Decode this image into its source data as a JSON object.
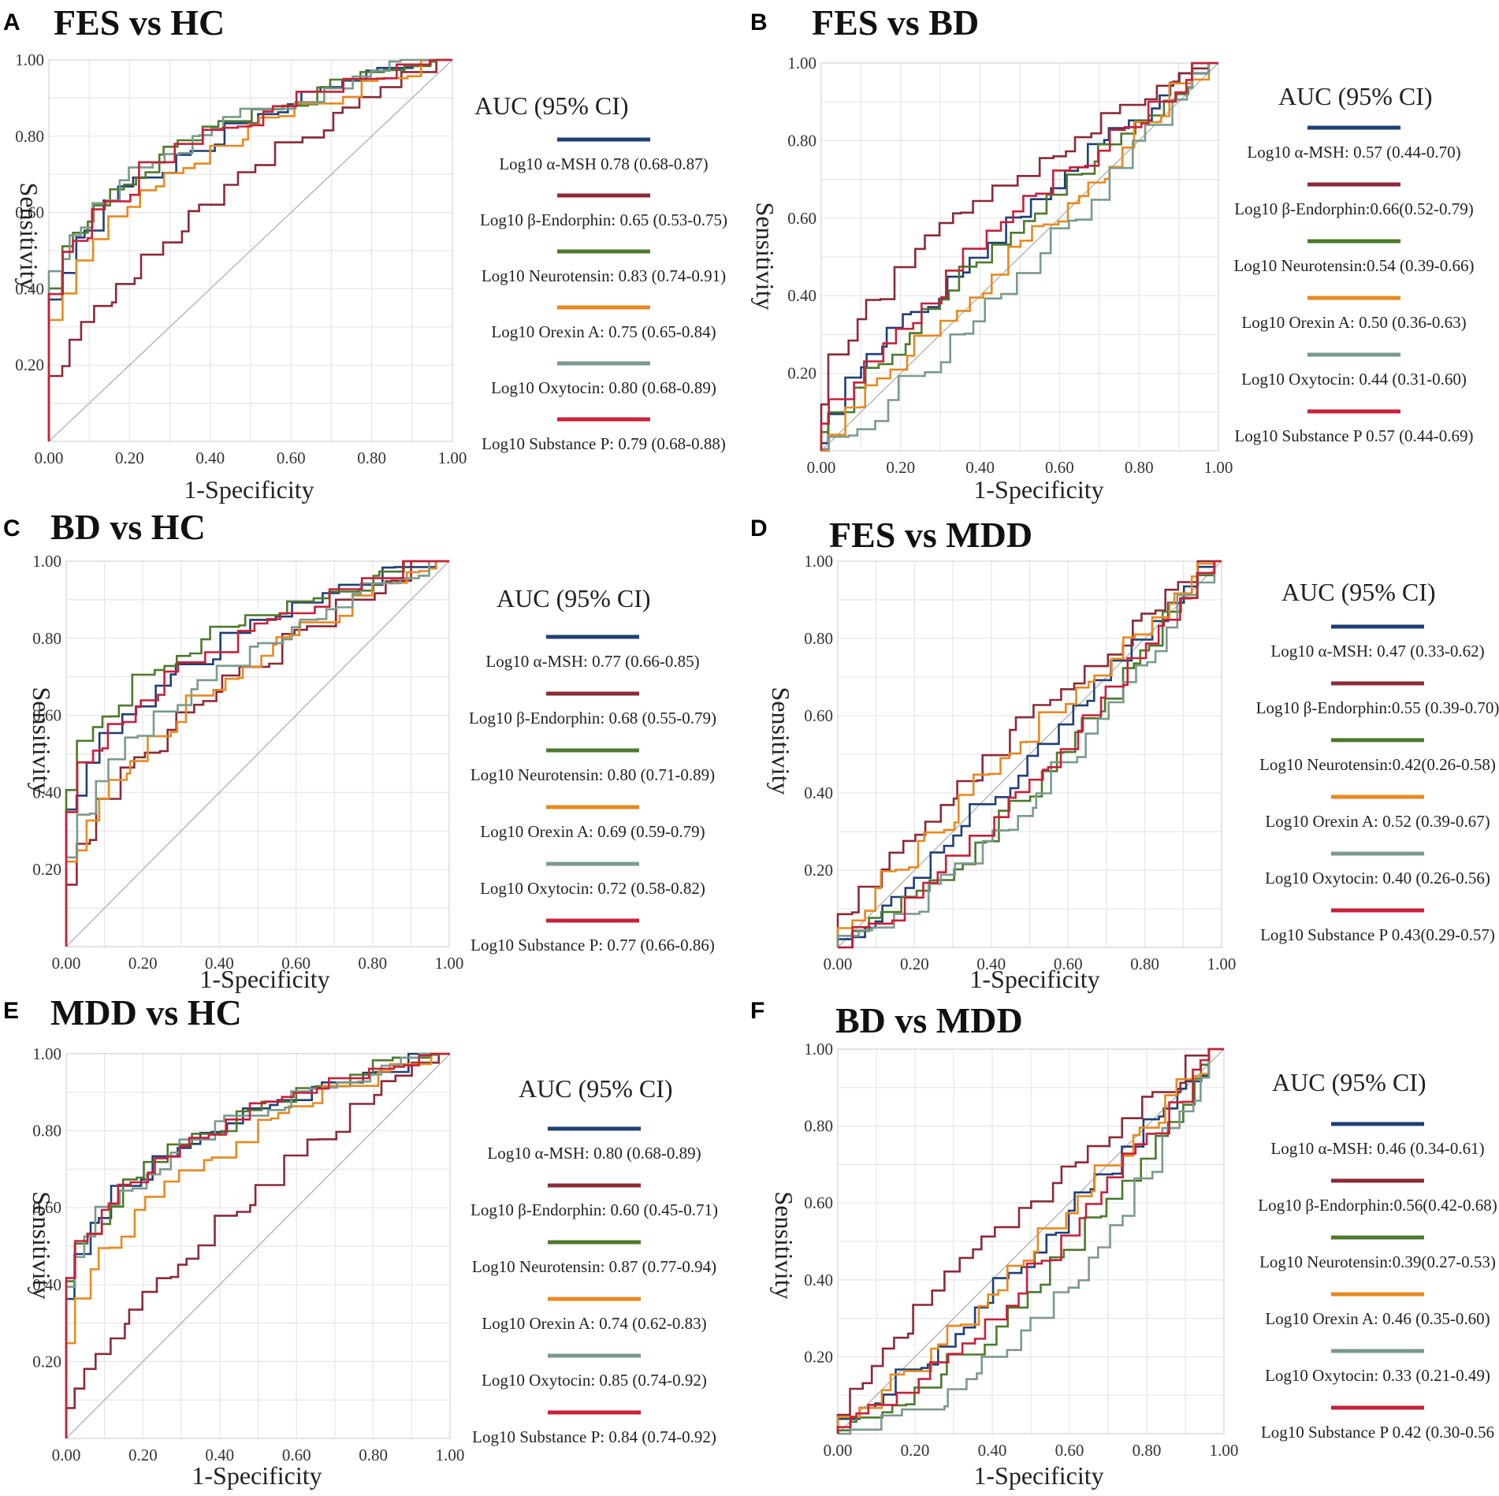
{
  "figure": {
    "colors": {
      "alpha_msh": "#1f3f74",
      "beta_endorphin": "#8b2a36",
      "neurotensin": "#4c7a2c",
      "orexin_a": "#e8891f",
      "oxytocin": "#7a9a8c",
      "substance_p": "#c8203a",
      "reference": "#b8b8b8"
    }
  },
  "chart_data": [
    {
      "panel": "A",
      "title": "FES vs HC",
      "type": "line",
      "xlabel": "1-Specificity",
      "ylabel": "Sensitivity",
      "xlim": [
        0,
        1
      ],
      "ylim": [
        0,
        1
      ],
      "xticks": [
        "0.00",
        "0.20",
        "0.40",
        "0.60",
        "0.80",
        "1.00"
      ],
      "yticks": [
        "0.20",
        "0.40",
        "0.60",
        "0.80",
        "1.00"
      ],
      "legend_title": "AUC (95% CI)",
      "series": [
        {
          "key": "alpha_msh",
          "label": "Log10 α-MSH 0.78 (0.68-0.87)",
          "auc": 0.78
        },
        {
          "key": "beta_endorphin",
          "label": "Log10 β-Endorphin: 0.65 (0.53-0.75)",
          "auc": 0.65
        },
        {
          "key": "neurotensin",
          "label": "Log10 Neurotensin: 0.83 (0.74-0.91)",
          "auc": 0.83
        },
        {
          "key": "orexin_a",
          "label": "Log10 Orexin A: 0.75 (0.65-0.84)",
          "auc": 0.75
        },
        {
          "key": "oxytocin",
          "label": "Log10 Oxytocin: 0.80 (0.68-0.89)",
          "auc": 0.8
        },
        {
          "key": "substance_p",
          "label": "Log10 Substance P: 0.79 (0.68-0.88)",
          "auc": 0.79
        }
      ]
    },
    {
      "panel": "B",
      "title": "FES vs BD",
      "type": "line",
      "xlabel": "1-Specificity",
      "ylabel": "Sensitivity",
      "xlim": [
        0,
        1
      ],
      "ylim": [
        0,
        1
      ],
      "xticks": [
        "0.00",
        "0.20",
        "0.40",
        "0.60",
        "0.80",
        "1.00"
      ],
      "yticks": [
        "0.20",
        "0.40",
        "0.60",
        "0.80",
        "1.00"
      ],
      "legend_title": "AUC (95% CI)",
      "series": [
        {
          "key": "alpha_msh",
          "label": "Log10 α-MSH: 0.57 (0.44-0.70)",
          "auc": 0.57
        },
        {
          "key": "beta_endorphin",
          "label": "Log10 β-Endorphin:0.66(0.52-0.79)",
          "auc": 0.66
        },
        {
          "key": "neurotensin",
          "label": "Log10 Neurotensin:0.54 (0.39-0.66)",
          "auc": 0.54
        },
        {
          "key": "orexin_a",
          "label": "Log10 Orexin A: 0.50 (0.36-0.63)",
          "auc": 0.5
        },
        {
          "key": "oxytocin",
          "label": "Log10 Oxytocin: 0.44 (0.31-0.60)",
          "auc": 0.44
        },
        {
          "key": "substance_p",
          "label": "Log10 Substance P 0.57 (0.44-0.69)",
          "auc": 0.57
        }
      ]
    },
    {
      "panel": "C",
      "title": "BD vs HC",
      "type": "line",
      "xlabel": "1-Specificity",
      "ylabel": "Sensitivity",
      "xlim": [
        0,
        1
      ],
      "ylim": [
        0,
        1
      ],
      "xticks": [
        "0.00",
        "0.20",
        "0.40",
        "0.60",
        "0.80",
        "1.00"
      ],
      "yticks": [
        "0.20",
        "0.40",
        "0.60",
        "0.80",
        "1.00"
      ],
      "legend_title": "AUC (95% CI)",
      "series": [
        {
          "key": "alpha_msh",
          "label": "Log10 α-MSH: 0.77 (0.66-0.85)",
          "auc": 0.77
        },
        {
          "key": "beta_endorphin",
          "label": "Log10 β-Endorphin: 0.68 (0.55-0.79)",
          "auc": 0.68
        },
        {
          "key": "neurotensin",
          "label": "Log10 Neurotensin: 0.80 (0.71-0.89)",
          "auc": 0.8
        },
        {
          "key": "orexin_a",
          "label": "Log10 Orexin A: 0.69 (0.59-0.79)",
          "auc": 0.69
        },
        {
          "key": "oxytocin",
          "label": "Log10 Oxytocin: 0.72 (0.58-0.82)",
          "auc": 0.72
        },
        {
          "key": "substance_p",
          "label": "Log10 Substance P: 0.77 (0.66-0.86)",
          "auc": 0.77
        }
      ]
    },
    {
      "panel": "D",
      "title": "FES vs MDD",
      "type": "line",
      "xlabel": "1-Specificity",
      "ylabel": "Sensitivity",
      "xlim": [
        0,
        1
      ],
      "ylim": [
        0,
        1
      ],
      "xticks": [
        "0.00",
        "0.20",
        "0.40",
        "0.60",
        "0.80",
        "1.00"
      ],
      "yticks": [
        "0.20",
        "0.40",
        "0.60",
        "0.80",
        "1.00"
      ],
      "legend_title": "AUC (95% CI)",
      "series": [
        {
          "key": "alpha_msh",
          "label": "Log10 α-MSH: 0.47 (0.33-0.62)",
          "auc": 0.47
        },
        {
          "key": "beta_endorphin",
          "label": "Log10 β-Endorphin:0.55 (0.39-0.70)",
          "auc": 0.55
        },
        {
          "key": "neurotensin",
          "label": "Log10 Neurotensin:0.42(0.26-0.58)",
          "auc": 0.42
        },
        {
          "key": "orexin_a",
          "label": "Log10 Orexin A: 0.52 (0.39-0.67)",
          "auc": 0.52
        },
        {
          "key": "oxytocin",
          "label": "Log10 Oxytocin: 0.40 (0.26-0.56)",
          "auc": 0.4
        },
        {
          "key": "substance_p",
          "label": "Log10 Substance P 0.43(0.29-0.57)",
          "auc": 0.43
        }
      ]
    },
    {
      "panel": "E",
      "title": "MDD vs HC",
      "type": "line",
      "xlabel": "1-Specificity",
      "ylabel": "Sensitivity",
      "xlim": [
        0,
        1
      ],
      "ylim": [
        0,
        1
      ],
      "xticks": [
        "0.00",
        "0.20",
        "0.40",
        "0.60",
        "0.80",
        "1.00"
      ],
      "yticks": [
        "0.20",
        "0.40",
        "0.60",
        "0.80",
        "1.00"
      ],
      "legend_title": "AUC (95% CI)",
      "series": [
        {
          "key": "alpha_msh",
          "label": "Log10 α-MSH: 0.80 (0.68-0.89)",
          "auc": 0.8
        },
        {
          "key": "beta_endorphin",
          "label": "Log10 β-Endorphin: 0.60 (0.45-0.71)",
          "auc": 0.6
        },
        {
          "key": "neurotensin",
          "label": "Log10 Neurotensin: 0.87 (0.77-0.94)",
          "auc": 0.87
        },
        {
          "key": "orexin_a",
          "label": "Log10 Orexin A: 0.74 (0.62-0.83)",
          "auc": 0.74
        },
        {
          "key": "oxytocin",
          "label": "Log10 Oxytocin: 0.85 (0.74-0.92)",
          "auc": 0.85
        },
        {
          "key": "substance_p",
          "label": "Log10 Substance P: 0.84 (0.74-0.92)",
          "auc": 0.84
        }
      ]
    },
    {
      "panel": "F",
      "title": "BD vs MDD",
      "type": "line",
      "xlabel": "1-Specificity",
      "ylabel": "Sensitivity",
      "xlim": [
        0,
        1
      ],
      "ylim": [
        0,
        1
      ],
      "xticks": [
        "0.00",
        "0.20",
        "0.40",
        "0.60",
        "0.80",
        "1.00"
      ],
      "yticks": [
        "0.20",
        "0.40",
        "0.60",
        "0.80",
        "1.00"
      ],
      "legend_title": "AUC (95% CI)",
      "series": [
        {
          "key": "alpha_msh",
          "label": "Log10 α-MSH: 0.46 (0.34-0.61)",
          "auc": 0.46
        },
        {
          "key": "beta_endorphin",
          "label": "Log10 β-Endorphin:0.56(0.42-0.68)",
          "auc": 0.56
        },
        {
          "key": "neurotensin",
          "label": "Log10 Neurotensin:0.39(0.27-0.53)",
          "auc": 0.39
        },
        {
          "key": "orexin_a",
          "label": "Log10 Orexin A: 0.46 (0.35-0.60)",
          "auc": 0.46
        },
        {
          "key": "oxytocin",
          "label": "Log10 Oxytocin: 0.33 (0.21-0.49)",
          "auc": 0.33
        },
        {
          "key": "substance_p",
          "label": "Log10 Substance P 0.42 (0.30-0.56",
          "auc": 0.42
        }
      ]
    }
  ]
}
